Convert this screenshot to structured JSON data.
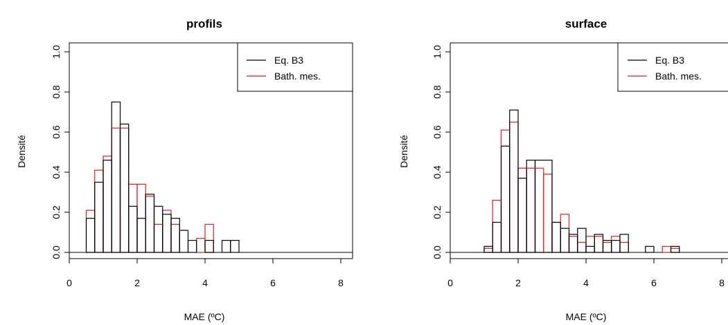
{
  "chart_data": [
    {
      "type": "histogram-step",
      "title": "profils",
      "xlabel": "MAE (ºC)",
      "ylabel": "Densité",
      "xlim": [
        0,
        8
      ],
      "ylim": [
        0,
        1.0
      ],
      "xticks": [
        0,
        2,
        4,
        6,
        8
      ],
      "yticks": [
        0.0,
        0.2,
        0.4,
        0.6,
        0.8,
        1.0
      ],
      "legend": {
        "position": "top-right",
        "entries": [
          "Eq. B3",
          "Bath. mes."
        ]
      },
      "colors": [
        "#000000",
        "#e8191a"
      ],
      "series": [
        {
          "name": "Eq. B3",
          "edges": [
            0.5,
            0.75,
            1.0,
            1.25,
            1.5,
            1.75,
            2.0,
            2.25,
            2.5,
            2.75,
            3.0,
            3.25,
            3.5,
            3.75,
            4.0,
            4.25,
            4.5,
            4.75,
            5.0
          ],
          "values": [
            0.17,
            0.35,
            0.46,
            0.75,
            0.64,
            0.23,
            0.17,
            0.29,
            0.23,
            0.19,
            0.17,
            0.11,
            0.06,
            0.0,
            0.06,
            0.0,
            0.06,
            0.06
          ]
        },
        {
          "name": "Bath. mes.",
          "edges": [
            0.5,
            0.75,
            1.0,
            1.25,
            1.5,
            1.75,
            2.0,
            2.25,
            2.5,
            2.75,
            3.0,
            3.25,
            3.5,
            3.75,
            4.0,
            4.25
          ],
          "values": [
            0.21,
            0.41,
            0.48,
            0.62,
            0.62,
            0.34,
            0.34,
            0.28,
            0.14,
            0.21,
            0.14,
            0.0,
            0.0,
            0.07,
            0.14
          ]
        }
      ]
    },
    {
      "type": "histogram-step",
      "title": "surface",
      "xlabel": "MAE (ºC)",
      "ylabel": "Densité",
      "xlim": [
        0,
        8
      ],
      "ylim": [
        0,
        1.0
      ],
      "xticks": [
        0,
        2,
        4,
        6,
        8
      ],
      "yticks": [
        0.0,
        0.2,
        0.4,
        0.6,
        0.8,
        1.0
      ],
      "legend": {
        "position": "top-right",
        "entries": [
          "Eq. B3",
          "Bath. mes."
        ]
      },
      "colors": [
        "#000000",
        "#e8191a"
      ],
      "series": [
        {
          "name": "Eq. B3",
          "edges": [
            1.0,
            1.25,
            1.5,
            1.75,
            2.0,
            2.25,
            2.5,
            3.0,
            3.25,
            3.5,
            3.75,
            4.0,
            4.25,
            4.5,
            4.75,
            5.0,
            5.25,
            5.5,
            5.75,
            6.0,
            6.25,
            6.5,
            6.75
          ],
          "values": [
            0.03,
            0.15,
            0.53,
            0.71,
            0.37,
            0.46,
            0.46,
            0.15,
            0.12,
            0.09,
            0.12,
            0.03,
            0.09,
            0.06,
            0.06,
            0.09,
            0.0,
            0.0,
            0.03,
            0.0,
            0.0,
            0.03
          ]
        },
        {
          "name": "Bath. mes.",
          "edges": [
            1.0,
            1.25,
            1.5,
            1.75,
            2.0,
            2.25,
            2.5,
            2.75,
            3.0,
            3.25,
            3.5,
            3.75,
            4.0,
            4.25,
            4.5,
            4.75,
            5.0,
            5.25,
            5.5,
            5.75,
            6.0,
            6.25,
            6.5,
            6.75
          ],
          "values": [
            0.02,
            0.26,
            0.61,
            0.65,
            0.42,
            0.42,
            0.42,
            0.39,
            0.15,
            0.19,
            0.08,
            0.05,
            0.08,
            0.08,
            0.05,
            0.08,
            0.05,
            0.0,
            0.0,
            0.0,
            0.0,
            0.03,
            0.02
          ]
        }
      ]
    }
  ]
}
